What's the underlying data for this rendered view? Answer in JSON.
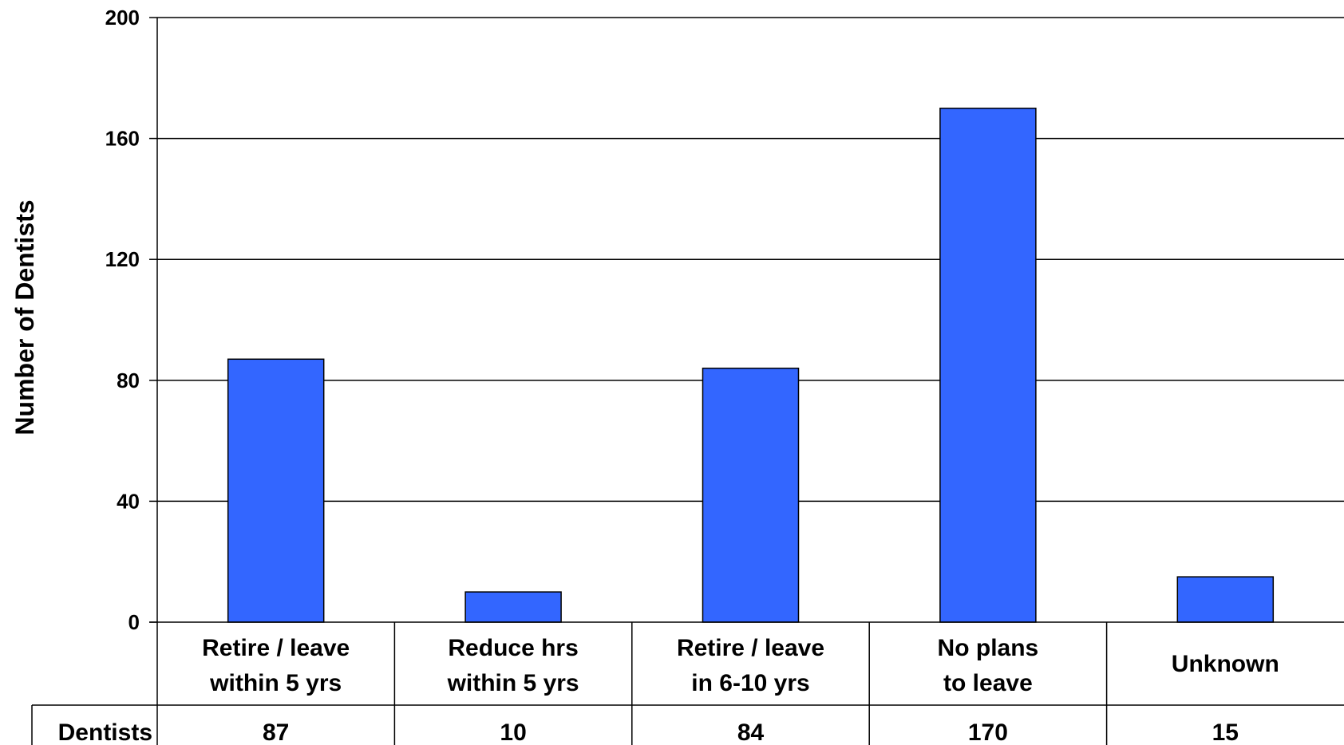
{
  "chart_data": {
    "type": "bar",
    "categories": [
      [
        "Retire / leave",
        "within 5 yrs"
      ],
      [
        "Reduce hrs",
        "within 5 yrs"
      ],
      [
        "Retire / leave",
        "in 6-10 yrs"
      ],
      [
        "No plans",
        "to leave"
      ],
      [
        "Unknown"
      ]
    ],
    "series": [
      {
        "name": "Dentists",
        "values": [
          87,
          10,
          84,
          170,
          15
        ]
      }
    ],
    "value_labels": [
      "87",
      "10",
      "84",
      "170",
      "15"
    ],
    "title": "",
    "xlabel": "",
    "ylabel": "Number of Dentists",
    "ylim": [
      0,
      200
    ],
    "yticks": [
      0,
      40,
      80,
      120,
      160,
      200
    ],
    "grid": true,
    "legend": "none",
    "data_table": true,
    "bar_color": "#3366ff"
  }
}
